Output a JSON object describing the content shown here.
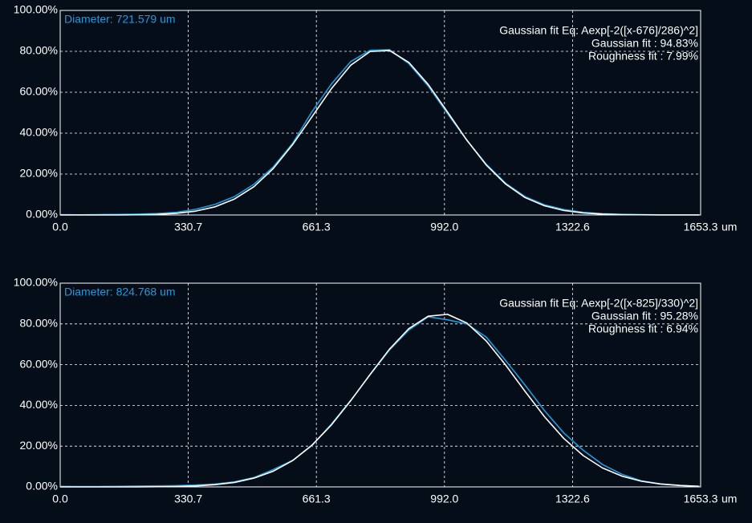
{
  "chart_data": [
    {
      "type": "line",
      "annotation_left": "Diameter: 721.579 um",
      "annotations_right": [
        "Gaussian fit Eq: Aexp[-2([x-676]/286)^2]",
        "Gaussian fit : 94.83%",
        "Roughness fit : 7.99%"
      ],
      "x_label": "um",
      "x": [
        0,
        50,
        100,
        150,
        200,
        250,
        300,
        350,
        400,
        450,
        500,
        550,
        600,
        650,
        700,
        750,
        800,
        850,
        900,
        950,
        1000,
        1050,
        1100,
        1150,
        1200,
        1250,
        1300,
        1350,
        1400,
        1450,
        1500,
        1550,
        1600,
        1650
      ],
      "series": [
        {
          "color": "#1e9be0",
          "values": [
            0.2,
            0.1,
            0.2,
            0.3,
            0.4,
            0.7,
            1.3,
            2.8,
            5.2,
            9.0,
            15.0,
            23.5,
            35.0,
            50.5,
            64.0,
            75.0,
            80.5,
            80.8,
            74.0,
            63.0,
            49.5,
            36.5,
            24.8,
            15.5,
            9.0,
            5.0,
            2.7,
            1.3,
            0.6,
            0.3,
            0.2,
            0.1,
            0.1,
            0.1
          ]
        },
        {
          "color": "#ffffff",
          "values": [
            0,
            0,
            0,
            0,
            0.1,
            0.3,
            0.8,
            1.9,
            4.0,
            7.8,
            13.8,
            22.7,
            34.4,
            48.0,
            61.7,
            73.2,
            79.9,
            80.4,
            74.6,
            63.8,
            50.3,
            36.5,
            24.4,
            15.1,
            8.5,
            4.5,
            2.2,
            1.0,
            0.4,
            0.2,
            0.1,
            0,
            0,
            0
          ]
        }
      ],
      "xlim": [
        0,
        1653.3
      ],
      "xticks": [
        {
          "value": 0,
          "label": "0.0"
        },
        330.7,
        661.3,
        {
          "value": 992,
          "label": "992.0"
        },
        1322.6,
        1653.3
      ],
      "ylim": [
        0,
        100
      ],
      "yticks": [
        {
          "value": 0,
          "label": "0.00%"
        },
        {
          "value": 20,
          "label": "20.00%"
        },
        {
          "value": 40,
          "label": "40.00%"
        },
        {
          "value": 60,
          "label": "60.00%"
        },
        {
          "value": 80,
          "label": "80.00%"
        },
        {
          "value": 100,
          "label": "100.00%"
        }
      ],
      "grid": true
    },
    {
      "type": "line",
      "annotation_left": "Diameter: 824.768 um",
      "annotations_right": [
        "Gaussian fit Eq: Aexp[-2([x-825]/330)^2]",
        "Gaussian fit : 95.28%",
        "Roughness fit : 6.94%"
      ],
      "x_label": "um",
      "x": [
        0,
        50,
        100,
        150,
        200,
        250,
        300,
        350,
        400,
        450,
        500,
        550,
        600,
        650,
        700,
        750,
        800,
        850,
        900,
        950,
        1000,
        1050,
        1100,
        1150,
        1200,
        1250,
        1300,
        1350,
        1400,
        1450,
        1500,
        1550,
        1600,
        1650
      ],
      "series": [
        {
          "color": "#1e9be0",
          "values": [
            0.3,
            0.2,
            0.2,
            0.3,
            0.4,
            0.5,
            0.6,
            0.9,
            1.4,
            2.5,
            4.6,
            8.5,
            13.0,
            20.3,
            30.8,
            42.5,
            55.0,
            67.2,
            77.0,
            83.5,
            82.0,
            80.0,
            73.5,
            62.0,
            50.0,
            37.5,
            26.5,
            18.0,
            11.0,
            6.2,
            3.0,
            1.5,
            0.7,
            0.3
          ]
        },
        {
          "color": "#ffffff",
          "values": [
            0,
            0,
            0,
            0,
            0,
            0.1,
            0.2,
            0.5,
            1.1,
            2.2,
            4.3,
            7.7,
            12.9,
            20.5,
            30.4,
            42.3,
            55.2,
            67.6,
            77.7,
            83.8,
            84.7,
            80.4,
            71.6,
            59.8,
            46.9,
            34.5,
            23.8,
            15.4,
            9.3,
            5.3,
            2.8,
            1.4,
            0.7,
            0.3
          ]
        }
      ],
      "xlim": [
        0,
        1653.3
      ],
      "xticks": [
        {
          "value": 0,
          "label": "0.0"
        },
        330.7,
        661.3,
        {
          "value": 992,
          "label": "992.0"
        },
        1322.6,
        1653.3
      ],
      "ylim": [
        0,
        100
      ],
      "yticks": [
        {
          "value": 0,
          "label": "0.00%"
        },
        {
          "value": 20,
          "label": "20.00%"
        },
        {
          "value": 40,
          "label": "40.00%"
        },
        {
          "value": 60,
          "label": "60.00%"
        },
        {
          "value": 80,
          "label": "80.00%"
        },
        {
          "value": 100,
          "label": "100.00%"
        }
      ],
      "grid": true
    }
  ]
}
